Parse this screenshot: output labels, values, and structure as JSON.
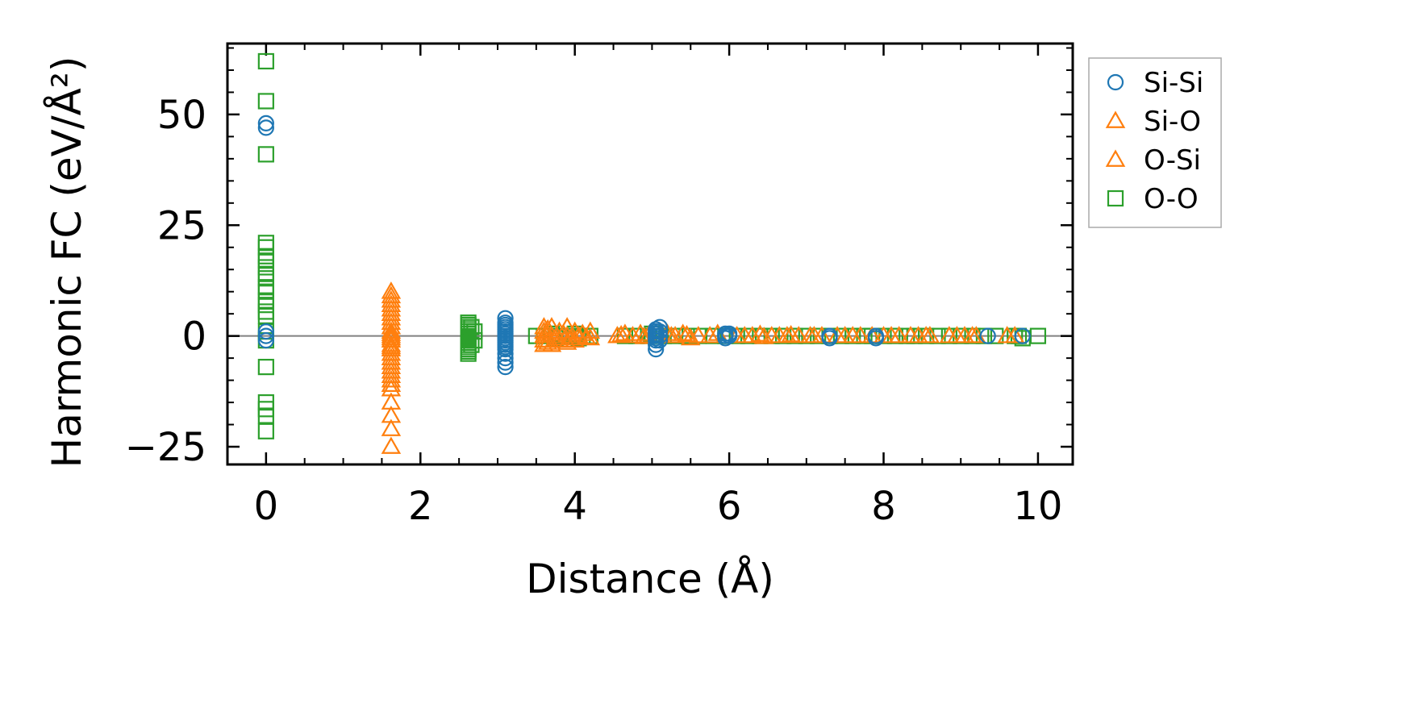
{
  "chart_data": {
    "type": "scatter",
    "xlabel": "Distance (Å)",
    "ylabel": "Harmonic FC (eV/Å²)",
    "xlim": [
      -0.5,
      10.45
    ],
    "ylim": [
      -29,
      66
    ],
    "x_ticks": [
      0,
      2,
      4,
      6,
      8,
      10
    ],
    "x_tick_labels": [
      "0",
      "2",
      "4",
      "6",
      "8",
      "10"
    ],
    "y_ticks": [
      -25,
      0,
      25,
      50
    ],
    "y_tick_labels": [
      "−25",
      "0",
      "25",
      "50"
    ],
    "grid": false,
    "zero_line": true,
    "legend": {
      "placement": "outside-right-top"
    },
    "series": [
      {
        "name": "Si-Si",
        "marker": "circle",
        "color": "#1f77b4",
        "points": [
          [
            0,
            48
          ],
          [
            0,
            47
          ],
          [
            0,
            1
          ],
          [
            0,
            0
          ],
          [
            0,
            -1
          ],
          [
            3.1,
            4
          ],
          [
            3.1,
            3
          ],
          [
            3.1,
            2.5
          ],
          [
            3.1,
            2
          ],
          [
            3.1,
            1.5
          ],
          [
            3.1,
            1
          ],
          [
            3.1,
            0.5
          ],
          [
            3.1,
            0
          ],
          [
            3.1,
            -0.5
          ],
          [
            3.1,
            -1
          ],
          [
            3.1,
            -1.5
          ],
          [
            3.1,
            -2
          ],
          [
            3.1,
            -2.5
          ],
          [
            3.1,
            -3
          ],
          [
            3.1,
            -4
          ],
          [
            3.1,
            -5
          ],
          [
            3.1,
            -6
          ],
          [
            3.1,
            -7
          ],
          [
            5.05,
            1.5
          ],
          [
            5.05,
            1
          ],
          [
            5.05,
            0.5
          ],
          [
            5.05,
            0
          ],
          [
            5.05,
            -0.5
          ],
          [
            5.05,
            -1
          ],
          [
            5.05,
            -2
          ],
          [
            5.05,
            -3
          ],
          [
            5.1,
            2
          ],
          [
            5.1,
            1
          ],
          [
            5.1,
            0
          ],
          [
            5.1,
            -1
          ],
          [
            5.95,
            0.5
          ],
          [
            5.95,
            0
          ],
          [
            5.95,
            -0.5
          ],
          [
            6.0,
            0.5
          ],
          [
            6.0,
            0
          ],
          [
            7.3,
            0
          ],
          [
            7.3,
            -0.5
          ],
          [
            7.9,
            0
          ],
          [
            7.9,
            -0.5
          ],
          [
            9.35,
            0
          ],
          [
            9.8,
            0
          ]
        ]
      },
      {
        "name": "Si-O",
        "marker": "triangle",
        "color": "#ff7f0e",
        "points": [
          [
            1.62,
            10
          ],
          [
            1.62,
            8
          ],
          [
            1.62,
            6
          ],
          [
            1.62,
            4
          ],
          [
            1.62,
            2
          ],
          [
            1.62,
            1
          ],
          [
            1.62,
            0
          ],
          [
            1.62,
            -1
          ],
          [
            1.62,
            -2
          ],
          [
            1.62,
            -3
          ],
          [
            1.62,
            -4
          ],
          [
            1.62,
            -5
          ],
          [
            1.62,
            -6
          ],
          [
            1.62,
            -8
          ],
          [
            1.62,
            -10
          ],
          [
            1.62,
            -12
          ],
          [
            1.62,
            -15
          ],
          [
            1.62,
            -18
          ],
          [
            1.62,
            -21
          ],
          [
            1.62,
            -25
          ],
          [
            3.6,
            2
          ],
          [
            3.6,
            1
          ],
          [
            3.6,
            0
          ],
          [
            3.6,
            -1
          ],
          [
            3.6,
            -2
          ],
          [
            3.65,
            1.5
          ],
          [
            3.65,
            -1.5
          ],
          [
            3.7,
            2
          ],
          [
            3.7,
            0
          ],
          [
            3.7,
            -2
          ],
          [
            3.8,
            1
          ],
          [
            3.8,
            -1
          ],
          [
            3.9,
            2
          ],
          [
            3.9,
            0
          ],
          [
            3.9,
            -1.5
          ],
          [
            4.0,
            1
          ],
          [
            4.0,
            -1
          ],
          [
            4.1,
            0.5
          ],
          [
            4.2,
            1
          ],
          [
            4.2,
            -0.5
          ],
          [
            4.55,
            0
          ],
          [
            4.65,
            0.5
          ],
          [
            4.75,
            0
          ],
          [
            4.85,
            0.5
          ],
          [
            4.95,
            0
          ],
          [
            5.2,
            0.5
          ],
          [
            5.3,
            0
          ],
          [
            5.4,
            0.5
          ],
          [
            5.5,
            -0.5
          ],
          [
            5.6,
            0
          ],
          [
            5.75,
            0
          ],
          [
            5.85,
            0.5
          ],
          [
            6.2,
            0
          ],
          [
            6.3,
            0
          ],
          [
            6.4,
            0.3
          ],
          [
            6.55,
            0
          ],
          [
            6.65,
            0
          ],
          [
            6.8,
            0.2
          ],
          [
            6.9,
            0
          ],
          [
            7.05,
            0
          ],
          [
            7.2,
            0
          ],
          [
            7.4,
            0
          ],
          [
            7.5,
            0
          ],
          [
            7.7,
            0
          ],
          [
            7.85,
            0
          ],
          [
            8.0,
            0
          ],
          [
            8.2,
            0
          ],
          [
            8.35,
            0
          ],
          [
            8.45,
            0
          ],
          [
            8.6,
            0
          ],
          [
            8.85,
            0
          ],
          [
            9.05,
            0
          ],
          [
            9.2,
            0
          ],
          [
            9.6,
            0
          ],
          [
            9.7,
            0
          ]
        ]
      },
      {
        "name": "O-Si",
        "marker": "triangle",
        "color": "#ff7f0e",
        "points": [
          [
            1.62,
            9
          ],
          [
            1.62,
            7
          ],
          [
            1.62,
            5
          ],
          [
            1.62,
            3
          ],
          [
            1.62,
            0.5
          ],
          [
            1.62,
            -0.5
          ],
          [
            1.62,
            -2.5
          ],
          [
            1.62,
            -7
          ],
          [
            1.62,
            -9
          ],
          [
            1.62,
            -11
          ],
          [
            3.62,
            0.5
          ],
          [
            3.75,
            -0.5
          ],
          [
            3.85,
            0.5
          ],
          [
            3.95,
            -0.5
          ],
          [
            4.05,
            0
          ],
          [
            4.15,
            -0.3
          ],
          [
            4.6,
            0.2
          ],
          [
            4.9,
            -0.2
          ],
          [
            5.25,
            0
          ],
          [
            5.45,
            0.2
          ],
          [
            6.1,
            0
          ],
          [
            6.45,
            -0.2
          ],
          [
            6.75,
            0
          ],
          [
            7.1,
            0
          ],
          [
            7.6,
            0
          ],
          [
            8.1,
            0
          ],
          [
            8.55,
            0
          ],
          [
            8.95,
            0
          ],
          [
            9.15,
            0
          ]
        ]
      },
      {
        "name": "O-O",
        "marker": "square",
        "color": "#2ca02c",
        "points": [
          [
            0,
            62
          ],
          [
            0,
            53
          ],
          [
            0,
            41
          ],
          [
            0,
            21
          ],
          [
            0,
            20
          ],
          [
            0,
            18
          ],
          [
            0,
            17
          ],
          [
            0,
            15.5
          ],
          [
            0,
            14
          ],
          [
            0,
            13
          ],
          [
            0,
            11
          ],
          [
            0,
            10
          ],
          [
            0,
            8
          ],
          [
            0,
            7
          ],
          [
            0,
            5.5
          ],
          [
            0,
            4.5
          ],
          [
            0,
            1
          ],
          [
            0,
            -1
          ],
          [
            0,
            -7
          ],
          [
            0,
            -15
          ],
          [
            0,
            -16.5
          ],
          [
            0,
            -18
          ],
          [
            0,
            -21.5
          ],
          [
            2.62,
            3
          ],
          [
            2.62,
            2.5
          ],
          [
            2.62,
            2
          ],
          [
            2.62,
            1.5
          ],
          [
            2.62,
            1
          ],
          [
            2.62,
            0.5
          ],
          [
            2.62,
            0
          ],
          [
            2.62,
            -0.5
          ],
          [
            2.62,
            -1
          ],
          [
            2.62,
            -1.5
          ],
          [
            2.62,
            -2
          ],
          [
            2.62,
            -2.5
          ],
          [
            2.62,
            -3
          ],
          [
            2.62,
            -3.5
          ],
          [
            2.62,
            -4
          ],
          [
            2.66,
            2
          ],
          [
            2.66,
            -2
          ],
          [
            2.7,
            1
          ],
          [
            2.7,
            -1
          ],
          [
            3.5,
            0
          ],
          [
            3.6,
            0
          ],
          [
            3.7,
            0.5
          ],
          [
            3.75,
            -0.5
          ],
          [
            3.8,
            0
          ],
          [
            3.9,
            0
          ],
          [
            4.0,
            0.5
          ],
          [
            4.05,
            -0.5
          ],
          [
            4.1,
            0
          ],
          [
            4.2,
            0
          ],
          [
            4.65,
            0
          ],
          [
            4.8,
            0
          ],
          [
            4.95,
            0
          ],
          [
            5.0,
            0.5
          ],
          [
            5.15,
            0
          ],
          [
            5.3,
            0
          ],
          [
            5.45,
            0
          ],
          [
            5.6,
            0
          ],
          [
            5.8,
            0
          ],
          [
            5.95,
            0
          ],
          [
            6.1,
            0
          ],
          [
            6.25,
            0
          ],
          [
            6.4,
            0
          ],
          [
            6.55,
            0
          ],
          [
            6.7,
            0
          ],
          [
            6.85,
            0
          ],
          [
            7.0,
            0
          ],
          [
            7.15,
            0
          ],
          [
            7.3,
            0
          ],
          [
            7.45,
            0
          ],
          [
            7.6,
            0
          ],
          [
            7.75,
            0
          ],
          [
            7.85,
            0
          ],
          [
            8.0,
            0
          ],
          [
            8.15,
            0
          ],
          [
            8.3,
            0
          ],
          [
            8.4,
            0
          ],
          [
            8.55,
            0
          ],
          [
            8.7,
            0
          ],
          [
            8.85,
            0
          ],
          [
            9.0,
            0
          ],
          [
            9.15,
            0
          ],
          [
            9.3,
            0
          ],
          [
            9.45,
            0
          ],
          [
            9.7,
            0
          ],
          [
            9.75,
            0
          ],
          [
            9.8,
            -0.5
          ],
          [
            10.0,
            0
          ]
        ]
      }
    ]
  }
}
